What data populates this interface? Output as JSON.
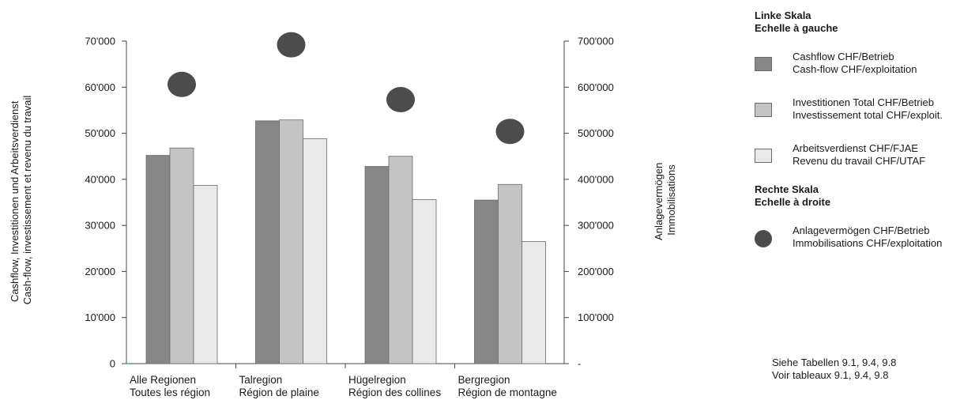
{
  "chart_data": {
    "type": "bar",
    "categories": [
      [
        "Alle Regionen",
        "Toutes les région"
      ],
      [
        "Talregion",
        "Région de plaine"
      ],
      [
        "Hügelregion",
        "Région des collines"
      ],
      [
        "Bergregion",
        "Région de montagne"
      ]
    ],
    "series": [
      {
        "name": "Cashflow CHF/Betrieb / Cash-flow CHF/exploitation",
        "axis": "left",
        "color": "#878787",
        "values": [
          45200,
          52700,
          42800,
          35500
        ]
      },
      {
        "name": "Investitionen Total CHF/Betrieb / Investissement total CHF/exploit.",
        "axis": "left",
        "color": "#c4c4c4",
        "values": [
          46800,
          52900,
          45000,
          38900
        ]
      },
      {
        "name": "Arbeitsverdienst CHF/FJAE / Revenu du travail CHF/UTAF",
        "axis": "left",
        "color": "#e9e9e9",
        "values": [
          38700,
          48800,
          35600,
          26500
        ]
      },
      {
        "name": "Anlagevermögen CHF/Betrieb / Immobilisations CHF/exploitation",
        "axis": "right",
        "type": "scatter",
        "color": "#4c4c4c",
        "values": [
          606000,
          692000,
          573000,
          504000
        ]
      }
    ],
    "y_left": {
      "lim": [
        0,
        70000
      ],
      "ticks": [
        "0",
        "10'000",
        "20'000",
        "30'000",
        "40'000",
        "50'000",
        "60'000",
        "70'000"
      ]
    },
    "y_right": {
      "lim": [
        0,
        700000
      ],
      "ticks": [
        "-",
        "100'000",
        "200'000",
        "300'000",
        "400'000",
        "500'000",
        "600'000",
        "700'000"
      ]
    },
    "ylabel_left": [
      "Cashflow, Investitionen und Arbeitsverdienst",
      "Cash-flow, investissement et revenu du travail"
    ],
    "ylabel_right": [
      "Anlagevermögen",
      "Immobilisations"
    ],
    "grid": false
  },
  "legend": {
    "left_heading": [
      "Linke Skala",
      "Echelle à gauche"
    ],
    "right_heading": [
      "Rechte Skala",
      "Echelle à droite"
    ],
    "items": [
      [
        "Cashflow CHF/Betrieb",
        "Cash-flow CHF/exploitation"
      ],
      [
        "Investitionen Total CHF/Betrieb",
        "Investissement total CHF/exploit."
      ],
      [
        "Arbeitsverdienst CHF/FJAE",
        "Revenu du travail CHF/UTAF"
      ],
      [
        "Anlagevermögen CHF/Betrieb",
        "Immobilisations CHF/exploitation"
      ]
    ]
  },
  "note": [
    "Siehe Tabellen 9.1, 9.4, 9.8",
    "Voir tableaux 9.1, 9.4, 9.8"
  ]
}
